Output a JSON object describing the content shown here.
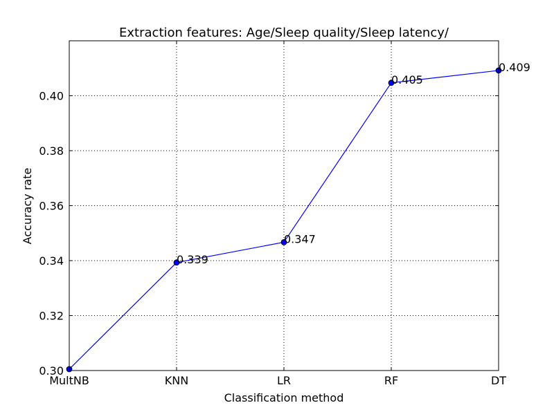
{
  "chart_data": {
    "type": "line",
    "title": "Extraction features: Age/Sleep quality/Sleep latency/",
    "xlabel": "Classification method",
    "ylabel": "Accuracy rate",
    "categories": [
      "MultNB",
      "KNN",
      "LR",
      "RF",
      "DT"
    ],
    "series": [
      {
        "values": [
          0.3005,
          0.3393,
          0.3467,
          0.4047,
          0.4092
        ],
        "color": "#0000ff"
      }
    ],
    "data_labels": [
      "",
      "0.339",
      "0.347",
      "0.405",
      "0.409"
    ],
    "ylim": [
      0.3,
      0.42
    ],
    "yticks": [
      0.3,
      0.32,
      0.34,
      0.36,
      0.38,
      0.4
    ],
    "ytick_labels": [
      "0.30",
      "0.32",
      "0.34",
      "0.36",
      "0.38",
      "0.40"
    ],
    "grid": true,
    "grid_style": "dotted",
    "colors": {
      "line": "#0000ff",
      "marker": "#0000ff",
      "axes": "#000000",
      "grid": "#000000"
    }
  }
}
